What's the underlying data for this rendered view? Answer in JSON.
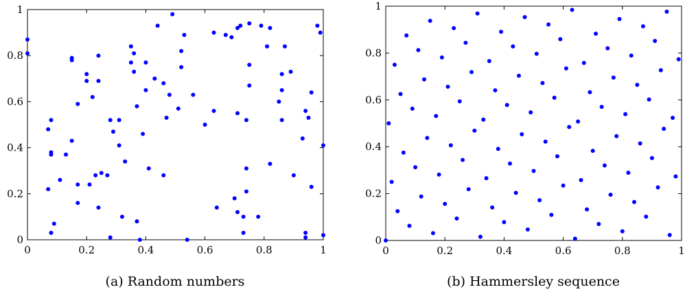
{
  "chart_data": [
    {
      "type": "scatter",
      "caption": "(a) Random numbers",
      "xlim": [
        0,
        1
      ],
      "ylim": [
        0,
        1
      ],
      "xticks": [
        "0",
        "0.2",
        "0.4",
        "0.6",
        "0.8",
        "1"
      ],
      "yticks": [
        "0",
        "0.2",
        "0.4",
        "0.6",
        "0.8",
        "1"
      ],
      "grid": false,
      "marker_color": "#0000ff",
      "points": [
        [
          0.0,
          0.87
        ],
        [
          0.0,
          0.81
        ],
        [
          0.07,
          0.22
        ],
        [
          0.07,
          0.48
        ],
        [
          0.08,
          0.52
        ],
        [
          0.08,
          0.38
        ],
        [
          0.08,
          0.37
        ],
        [
          0.08,
          0.03
        ],
        [
          0.09,
          0.07
        ],
        [
          0.11,
          0.26
        ],
        [
          0.13,
          0.37
        ],
        [
          0.15,
          0.79
        ],
        [
          0.15,
          0.78
        ],
        [
          0.15,
          0.43
        ],
        [
          0.17,
          0.59
        ],
        [
          0.17,
          0.24
        ],
        [
          0.17,
          0.16
        ],
        [
          0.2,
          0.69
        ],
        [
          0.2,
          0.72
        ],
        [
          0.21,
          0.24
        ],
        [
          0.22,
          0.62
        ],
        [
          0.23,
          0.28
        ],
        [
          0.24,
          0.69
        ],
        [
          0.24,
          0.8
        ],
        [
          0.24,
          0.14
        ],
        [
          0.25,
          0.29
        ],
        [
          0.27,
          0.28
        ],
        [
          0.28,
          0.52
        ],
        [
          0.28,
          0.01
        ],
        [
          0.29,
          0.47
        ],
        [
          0.31,
          0.52
        ],
        [
          0.31,
          0.41
        ],
        [
          0.32,
          0.1
        ],
        [
          0.33,
          0.34
        ],
        [
          0.35,
          0.84
        ],
        [
          0.35,
          0.77
        ],
        [
          0.36,
          0.81
        ],
        [
          0.36,
          0.73
        ],
        [
          0.37,
          0.58
        ],
        [
          0.37,
          0.08
        ],
        [
          0.38,
          0.0
        ],
        [
          0.39,
          0.46
        ],
        [
          0.4,
          0.65
        ],
        [
          0.4,
          0.77
        ],
        [
          0.41,
          0.31
        ],
        [
          0.43,
          0.7
        ],
        [
          0.44,
          0.93
        ],
        [
          0.46,
          0.68
        ],
        [
          0.46,
          0.28
        ],
        [
          0.47,
          0.53
        ],
        [
          0.48,
          0.63
        ],
        [
          0.49,
          0.98
        ],
        [
          0.51,
          0.57
        ],
        [
          0.52,
          0.82
        ],
        [
          0.52,
          0.75
        ],
        [
          0.53,
          0.89
        ],
        [
          0.54,
          0.0
        ],
        [
          0.56,
          0.63
        ],
        [
          0.6,
          0.5
        ],
        [
          0.63,
          0.56
        ],
        [
          0.63,
          0.9
        ],
        [
          0.64,
          0.14
        ],
        [
          0.67,
          0.89
        ],
        [
          0.69,
          0.88
        ],
        [
          0.7,
          0.18
        ],
        [
          0.71,
          0.92
        ],
        [
          0.71,
          0.55
        ],
        [
          0.71,
          0.12
        ],
        [
          0.72,
          0.93
        ],
        [
          0.73,
          0.03
        ],
        [
          0.73,
          0.1
        ],
        [
          0.74,
          0.21
        ],
        [
          0.74,
          0.31
        ],
        [
          0.74,
          0.52
        ],
        [
          0.75,
          0.94
        ],
        [
          0.75,
          0.67
        ],
        [
          0.75,
          0.76
        ],
        [
          0.78,
          0.1
        ],
        [
          0.79,
          0.93
        ],
        [
          0.81,
          0.84
        ],
        [
          0.82,
          0.92
        ],
        [
          0.82,
          0.33
        ],
        [
          0.85,
          0.6
        ],
        [
          0.86,
          0.52
        ],
        [
          0.86,
          0.72
        ],
        [
          0.86,
          0.65
        ],
        [
          0.87,
          0.84
        ],
        [
          0.89,
          0.73
        ],
        [
          0.9,
          0.28
        ],
        [
          0.93,
          0.44
        ],
        [
          0.94,
          0.56
        ],
        [
          0.94,
          0.03
        ],
        [
          0.94,
          0.01
        ],
        [
          0.95,
          0.53
        ],
        [
          0.96,
          0.64
        ],
        [
          0.96,
          0.23
        ],
        [
          0.98,
          0.93
        ],
        [
          0.99,
          0.9
        ],
        [
          1.0,
          0.41
        ],
        [
          1.0,
          0.02
        ]
      ]
    },
    {
      "type": "scatter",
      "caption": "(b) Hammersley sequence",
      "xlim": [
        0,
        1
      ],
      "ylim": [
        0,
        1
      ],
      "xticks": [
        "0",
        "0.2",
        "0.4",
        "0.6",
        "0.8",
        "1"
      ],
      "yticks": [
        "0",
        "0.2",
        "0.4",
        "0.6",
        "0.8",
        "1"
      ],
      "grid": false,
      "marker_color": "#0000ff",
      "hammersley_points": 100
    }
  ]
}
